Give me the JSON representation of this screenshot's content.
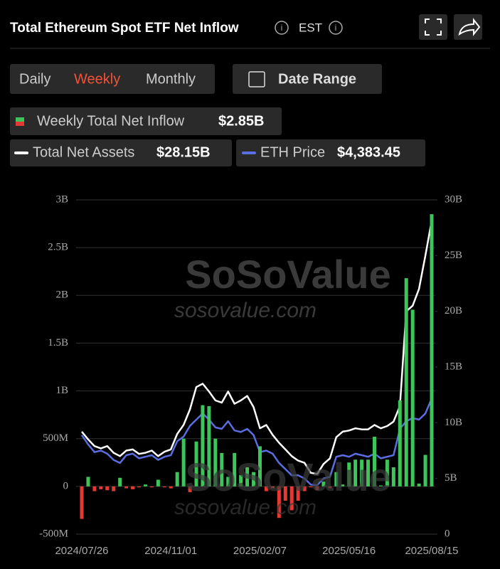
{
  "header": {
    "title": "Total Ethereum Spot ETF Net Inflow",
    "timezone": "EST"
  },
  "tabs": [
    "Daily",
    "Weekly",
    "Monthly"
  ],
  "date_range": "Date Range",
  "watermark": {
    "brand": "SoSoValue",
    "url": "sosovalue.com"
  },
  "chart_data": {
    "type": "bar_line",
    "categories": [
      "2024/07/26",
      null,
      null,
      null,
      null,
      null,
      null,
      null,
      null,
      null,
      null,
      null,
      null,
      null,
      "2024/11/01",
      null,
      null,
      null,
      null,
      null,
      null,
      null,
      null,
      null,
      null,
      null,
      null,
      null,
      "2025/02/07",
      null,
      null,
      null,
      null,
      null,
      null,
      null,
      null,
      null,
      null,
      null,
      null,
      null,
      "2025/05/16",
      null,
      null,
      null,
      null,
      null,
      null,
      null,
      null,
      null,
      null,
      null,
      null,
      "2025/08/15"
    ],
    "series": [
      {
        "name": "Weekly Total Net Inflow",
        "summary": "$2.85B",
        "type": "bar",
        "axis": "y",
        "color": "#3ec45a",
        "negative_color": "#e53935",
        "values": [
          -0.34,
          0.1,
          -0.05,
          -0.03,
          -0.04,
          -0.05,
          0.09,
          -0.02,
          -0.03,
          -0.01,
          0.02,
          -0.01,
          0.07,
          -0.01,
          -0.02,
          0.15,
          0.5,
          -0.06,
          0.47,
          0.85,
          0.84,
          0.5,
          0.35,
          0.1,
          0.35,
          0.12,
          0.2,
          0.15,
          0.42,
          -0.05,
          -0.02,
          -0.33,
          -0.15,
          -0.25,
          -0.15,
          -0.05,
          -0.01,
          -0.04,
          0.05,
          -0.02,
          0.15,
          0.02,
          0.25,
          0.28,
          0.28,
          0.28,
          0.52,
          0.01,
          0.28,
          0.2,
          0.9,
          2.18,
          1.85,
          0.03,
          0.33,
          2.85
        ]
      },
      {
        "name": "Total Net Assets",
        "summary": "$28.15B",
        "type": "line",
        "axis": "y2",
        "color": "#ffffff",
        "values": [
          9.2,
          8.5,
          7.9,
          7.7,
          7.9,
          7.3,
          7.0,
          7.5,
          7.6,
          7.2,
          7.3,
          7.5,
          7.0,
          7.4,
          7.6,
          9.0,
          9.8,
          11.2,
          13.2,
          13.5,
          12.8,
          12.0,
          11.8,
          12.8,
          11.7,
          12.0,
          12.4,
          11.4,
          9.5,
          9.8,
          8.9,
          8.2,
          7.6,
          7.0,
          6.6,
          6.4,
          5.5,
          5.4,
          6.3,
          6.8,
          8.7,
          9.2,
          9.3,
          9.5,
          9.4,
          9.4,
          9.8,
          9.5,
          9.7,
          10.1,
          11.5,
          20.0,
          20.5,
          22.0,
          25.0,
          28.15
        ]
      },
      {
        "name": "ETH Price",
        "summary": "$4,383.45",
        "type": "line",
        "axis": "y3",
        "color": "#5b6ee1",
        "values": [
          3200,
          2900,
          2650,
          2700,
          2600,
          2400,
          2300,
          2550,
          2600,
          2450,
          2500,
          2550,
          2400,
          2500,
          2550,
          3000,
          3150,
          3500,
          3700,
          3900,
          3700,
          3450,
          3400,
          3650,
          3350,
          3300,
          3400,
          3200,
          2650,
          2700,
          2600,
          2300,
          2100,
          1900,
          1900,
          1800,
          1600,
          1580,
          1800,
          1850,
          2500,
          2550,
          2500,
          2600,
          2550,
          2500,
          2600,
          2450,
          2500,
          2550,
          3400,
          3650,
          3750,
          3700,
          3900,
          4383.45
        ]
      }
    ],
    "ylim": [
      -0.5,
      3
    ],
    "yticks": [
      {
        "value": 3,
        "label": "3B"
      },
      {
        "value": 2.5,
        "label": "2.5B"
      },
      {
        "value": 2,
        "label": "2B"
      },
      {
        "value": 1.5,
        "label": "1.5B"
      },
      {
        "value": 1,
        "label": "1B"
      },
      {
        "value": 0.5,
        "label": "500M"
      },
      0,
      {
        "value": -0.5,
        "label": "-500M"
      }
    ],
    "y2lim": [
      0,
      30
    ],
    "y2ticks": [
      {
        "value": 30,
        "label": "30B"
      },
      {
        "value": 25,
        "label": "25B"
      },
      {
        "value": 20,
        "label": "20B"
      },
      {
        "value": 15,
        "label": "15B"
      },
      {
        "value": 10,
        "label": "10B"
      },
      {
        "value": 5,
        "label": "5B"
      },
      0
    ],
    "y3lim": [
      0,
      10800
    ],
    "grid": true
  }
}
